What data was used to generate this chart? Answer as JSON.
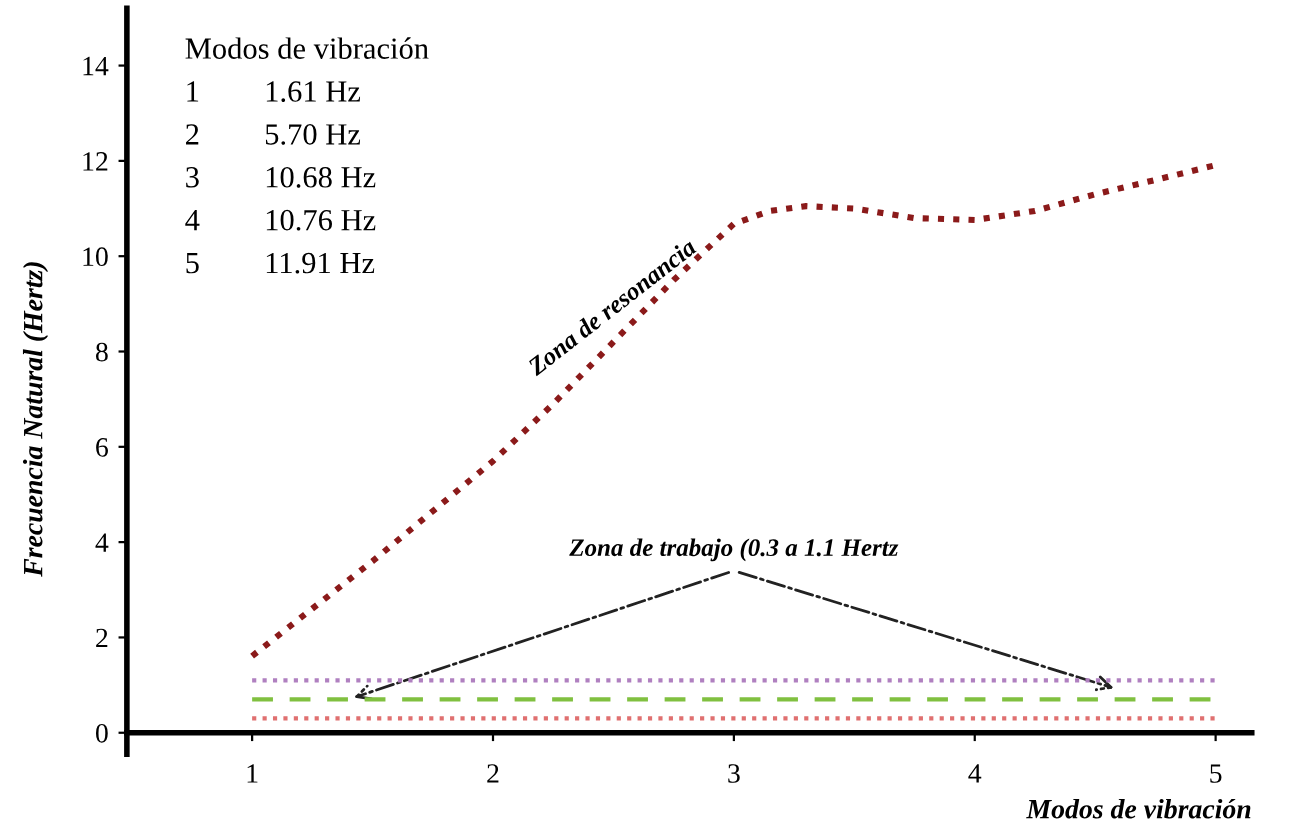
{
  "chart_data": {
    "type": "line",
    "series": [
      {
        "color": "#8b1a1a",
        "x": [
          1,
          1.5,
          2,
          2.25,
          2.5,
          2.75,
          3,
          3.15,
          3.3,
          3.5,
          3.75,
          4,
          4.25,
          4.5,
          4.75,
          5
        ],
        "values": [
          1.61,
          3.6,
          5.7,
          6.9,
          8.2,
          9.5,
          10.68,
          10.95,
          11.05,
          11.0,
          10.8,
          10.76,
          10.95,
          11.3,
          11.6,
          11.91
        ],
        "line_style": "dotted"
      }
    ],
    "xlabel": "Modos de vibración",
    "ylabel": "Frecuencia Natural (Hertz)",
    "xlim": [
      0.48,
      5.15
    ],
    "ylim": [
      -0.45,
      15.2
    ],
    "xticks": [
      1,
      2,
      3,
      4,
      5
    ],
    "yticks": [
      0,
      2,
      4,
      6,
      8,
      10,
      12,
      14
    ],
    "ref_lines": [
      {
        "axis": "y",
        "value": 1.1,
        "color": "#b080c0",
        "line_style": "dotted"
      },
      {
        "axis": "y",
        "value": 0.7,
        "color": "#80c040",
        "line_style": "dashed"
      },
      {
        "axis": "y",
        "value": 0.3,
        "color": "#e07070",
        "line_style": "dotted"
      }
    ],
    "annotations": [
      "Modos de vibración",
      "1\t1.61 Hz",
      "2\t5.70 Hz",
      "3\t10.68 Hz",
      "4\t10.76 Hz",
      "5\t11.91 Hz",
      "Zona de resonancia",
      {
        "text": "Zona de trabajo (0.3 a 1.1 Hertz",
        "x": 1.4,
        "y": 0.7
      }
    ],
    "grid": false,
    "legend": false,
    "marker": "none"
  }
}
